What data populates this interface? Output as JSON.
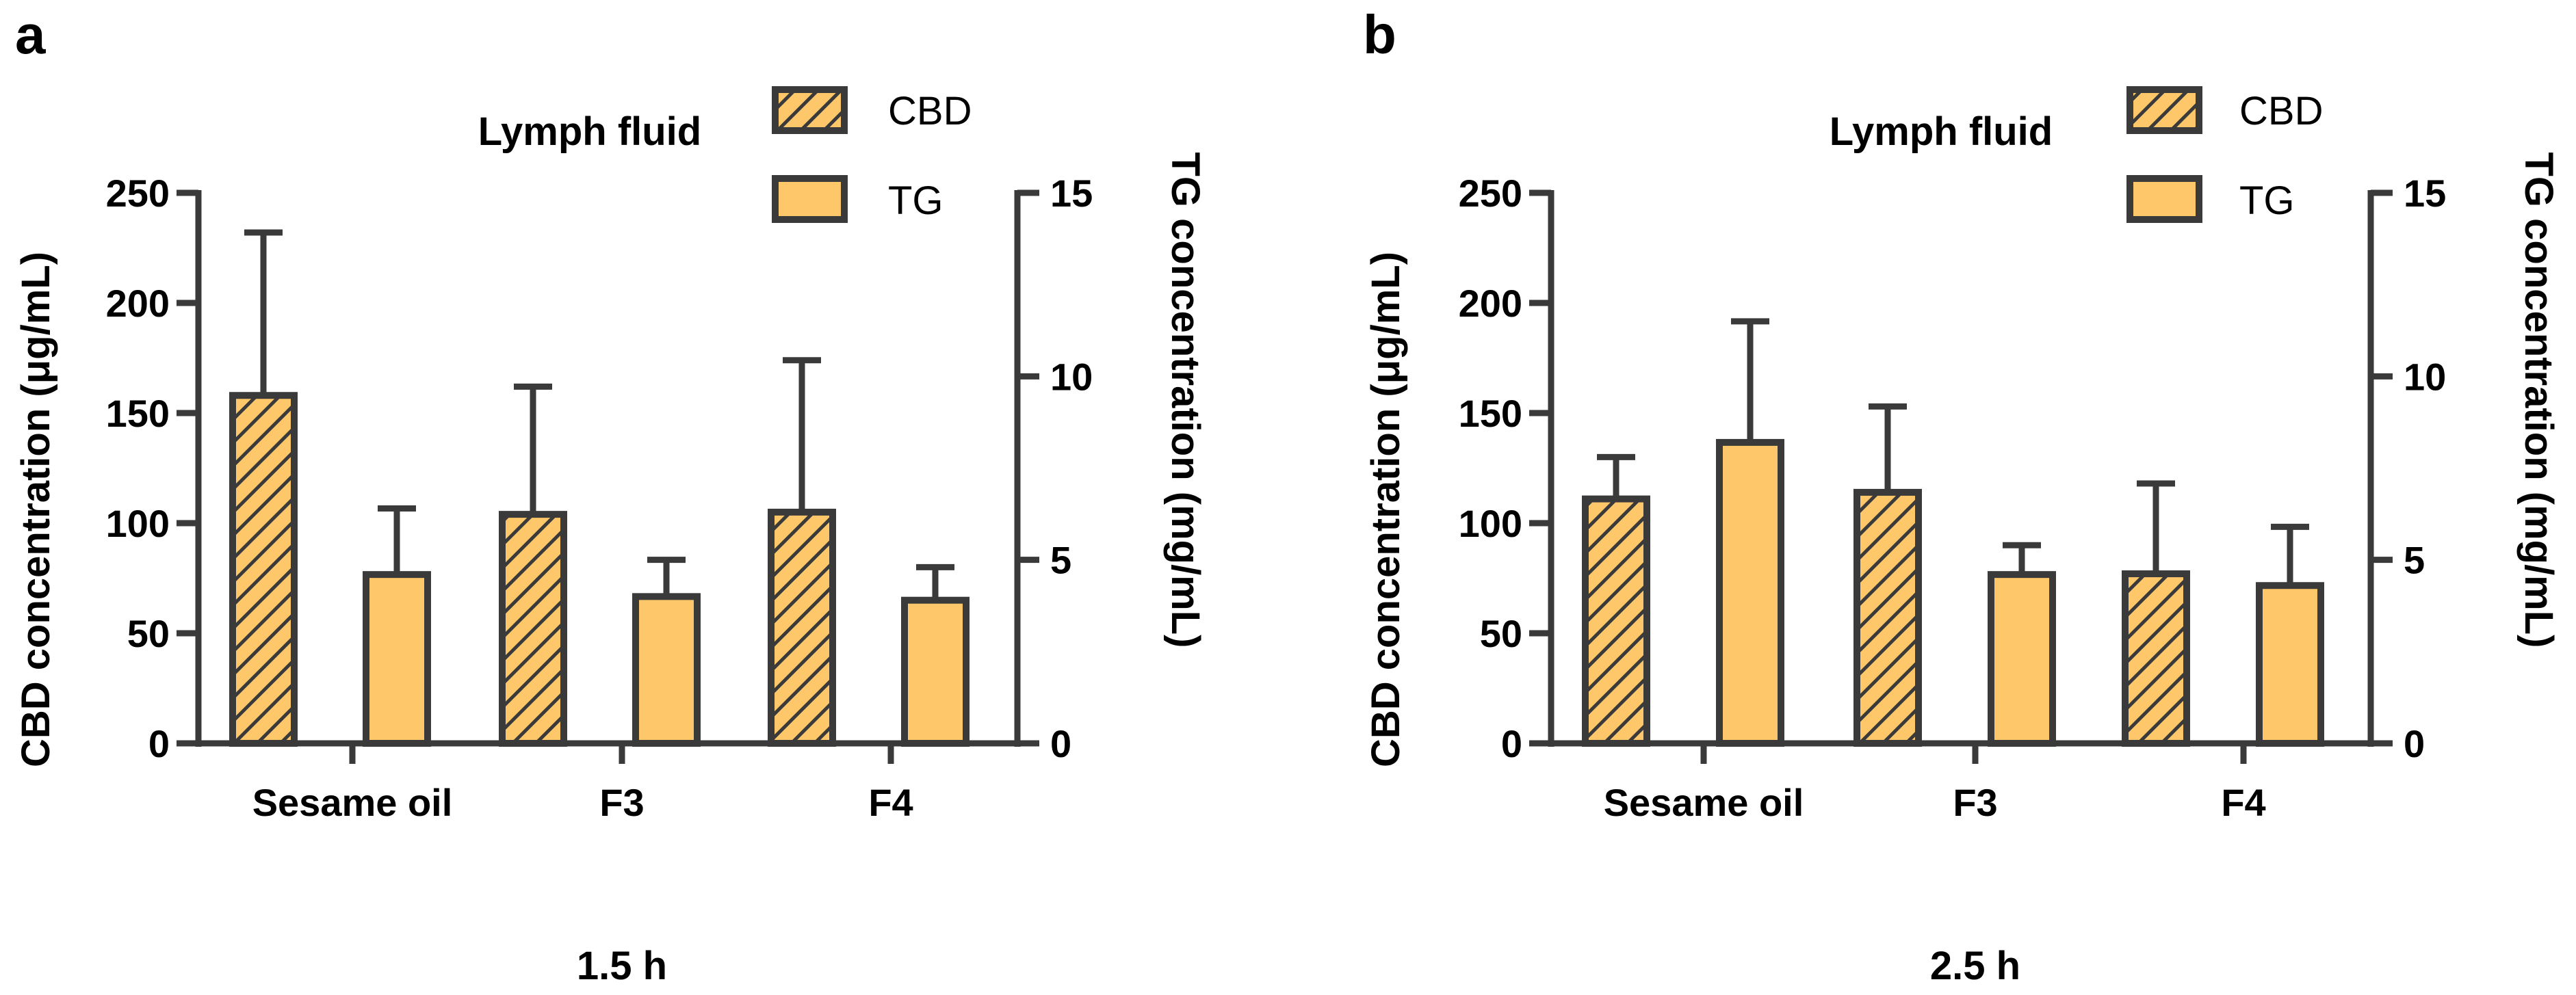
{
  "colors": {
    "fill": "#fdc76a",
    "stroke": "#3a3a3a",
    "hatch": "#3a3a3a",
    "background": "#ffffff"
  },
  "chart_data": [
    {
      "type": "bar",
      "panel_label": "a",
      "title": "Lymph fluid",
      "xlabel": "1.5 h",
      "ylabel": "CBD concentration (μg/mL)",
      "y2label": "TG concentration (mg/mL)",
      "ylim": [
        0,
        250
      ],
      "y2lim": [
        0,
        15
      ],
      "yticks": [
        "0",
        "50",
        "100",
        "150",
        "200",
        "250"
      ],
      "y2ticks": [
        "0",
        "5",
        "10",
        "15"
      ],
      "categories": [
        "Sesame oil",
        "F3",
        "F4"
      ],
      "legend": [
        {
          "name": "CBD",
          "pattern": "hatched"
        },
        {
          "name": "TG",
          "pattern": "solid"
        }
      ],
      "series": [
        {
          "name": "CBD",
          "axis": "left",
          "pattern": "hatched",
          "values": [
            158,
            104,
            105
          ],
          "errors": [
            74,
            58,
            69
          ]
        },
        {
          "name": "TG",
          "axis": "right",
          "pattern": "solid",
          "values": [
            4.6,
            4.0,
            3.9
          ],
          "errors": [
            1.8,
            1.0,
            0.9
          ]
        }
      ]
    },
    {
      "type": "bar",
      "panel_label": "b",
      "title": "Lymph fluid",
      "xlabel": "2.5 h",
      "ylabel": "CBD concentration (μg/mL)",
      "y2label": "TG concentration (mg/mL)",
      "ylim": [
        0,
        250
      ],
      "y2lim": [
        0,
        15
      ],
      "yticks": [
        "0",
        "50",
        "100",
        "150",
        "200",
        "250"
      ],
      "y2ticks": [
        "0",
        "5",
        "10",
        "15"
      ],
      "categories": [
        "Sesame oil",
        "F3",
        "F4"
      ],
      "legend": [
        {
          "name": "CBD",
          "pattern": "hatched"
        },
        {
          "name": "TG",
          "pattern": "solid"
        }
      ],
      "series": [
        {
          "name": "CBD",
          "axis": "left",
          "pattern": "hatched",
          "values": [
            111,
            114,
            77
          ],
          "errors": [
            19,
            39,
            41
          ]
        },
        {
          "name": "TG",
          "axis": "right",
          "pattern": "solid",
          "values": [
            8.2,
            4.6,
            4.3
          ],
          "errors": [
            3.3,
            0.8,
            1.6
          ]
        }
      ]
    }
  ]
}
